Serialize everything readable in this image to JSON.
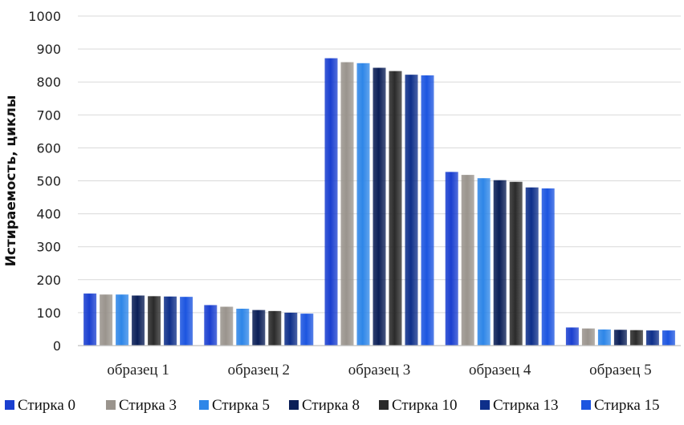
{
  "chart_data": {
    "type": "bar",
    "title": "",
    "xlabel": "",
    "ylabel": "Истираемость, циклы",
    "ylim": [
      0,
      1000
    ],
    "yticks": [
      0,
      100,
      200,
      300,
      400,
      500,
      600,
      700,
      800,
      900,
      1000
    ],
    "grid": true,
    "legend_position": "bottom",
    "categories": [
      "образец 1",
      "образец 2",
      "образец 3",
      "образец 4",
      "образец 5"
    ],
    "series": [
      {
        "name": "Стирка 0",
        "color": "#1a3fd0",
        "values": [
          158,
          123,
          872,
          527,
          55
        ]
      },
      {
        "name": "Стирка 3",
        "color": "#9a948d",
        "values": [
          155,
          118,
          860,
          518,
          52
        ]
      },
      {
        "name": "Стирка 5",
        "color": "#2e86e8",
        "values": [
          155,
          112,
          857,
          508,
          49
        ]
      },
      {
        "name": "Стирка 8",
        "color": "#0b1f57",
        "values": [
          152,
          108,
          843,
          502,
          48
        ]
      },
      {
        "name": "Стирка 10",
        "color": "#2b2b2b",
        "values": [
          150,
          105,
          833,
          497,
          47
        ]
      },
      {
        "name": "Стирка 13",
        "color": "#0e2f8a",
        "values": [
          149,
          100,
          822,
          480,
          46
        ]
      },
      {
        "name": "Стирка 15",
        "color": "#1c55e0",
        "values": [
          148,
          97,
          820,
          477,
          46
        ]
      }
    ]
  }
}
